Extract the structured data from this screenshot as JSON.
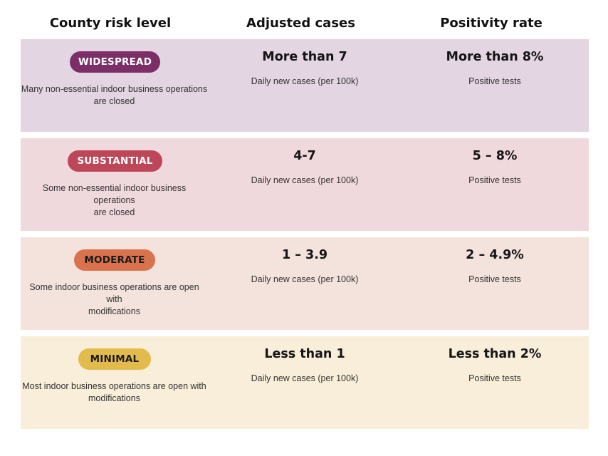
{
  "headers": {
    "risk_level": "County risk level",
    "adjusted_cases": "Adjusted cases",
    "positivity_rate": "Positivity rate"
  },
  "tiers": [
    {
      "badge": "WIDESPREAD",
      "description_line1": "Many non-essential indoor business operations",
      "description_line2": "are closed",
      "cases": "More than 7",
      "cases_sub": "Daily new cases (per 100k)",
      "positivity": "More than 8%",
      "positivity_sub": "Positive tests",
      "row_color": "#e3d5e1",
      "badge_color": "#7b2f66",
      "badge_text_color": "#ffffff"
    },
    {
      "badge": "SUBSTANTIAL",
      "description_line1": "Some non-essential indoor business operations",
      "description_line2": "are closed",
      "cases": "4-7",
      "cases_sub": "Daily new cases (per 100k)",
      "positivity": "5 – 8%",
      "positivity_sub": "Positive tests",
      "row_color": "#f0d9dd",
      "badge_color": "#bd4658",
      "badge_text_color": "#ffffff"
    },
    {
      "badge": "MODERATE",
      "description_line1": "Some indoor business operations are open with",
      "description_line2": "modifications",
      "cases": "1 – 3.9",
      "cases_sub": "Daily new cases (per 100k)",
      "positivity": "2 – 4.9%",
      "positivity_sub": "Positive tests",
      "row_color": "#f3e3dc",
      "badge_color": "#d8734d",
      "badge_text_color": "#1a1a1a"
    },
    {
      "badge": "MINIMAL",
      "description_line1": "Most indoor business operations are open with",
      "description_line2": "modifications",
      "cases": "Less than 1",
      "cases_sub": "Daily new cases (per 100k)",
      "positivity": "Less than 2%",
      "positivity_sub": "Positive tests",
      "row_color": "#f8eed9",
      "badge_color": "#e3bb4c",
      "badge_text_color": "#1a1a1a"
    }
  ]
}
